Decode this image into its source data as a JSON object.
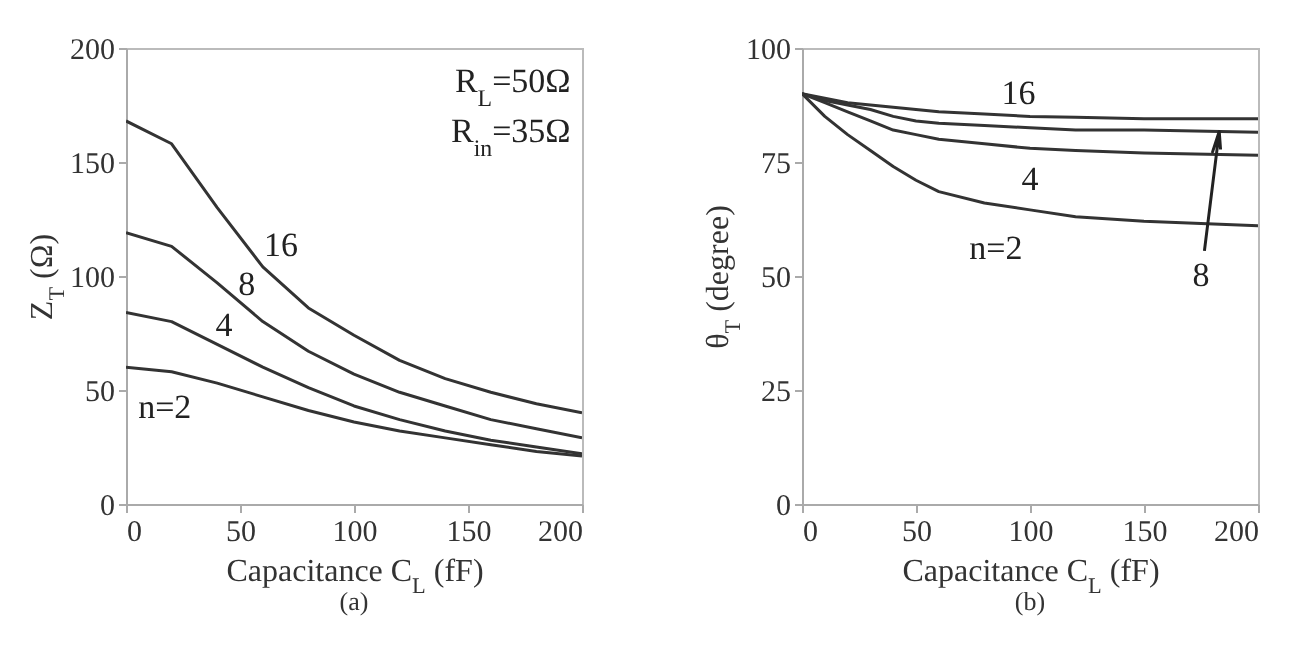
{
  "chart_data": [
    {
      "type": "line",
      "xlabel": "Capacitance C$_{L}$ (fF)",
      "ylabel": "Z$_{T}$ (Ω)",
      "annotations": [
        "R$_{L}$=50Ω",
        "R$_{in}$=35Ω",
        "(a)"
      ],
      "xlim": [
        0,
        200
      ],
      "xticks": [
        0,
        50,
        100,
        150,
        200
      ],
      "ylim": [
        0,
        200
      ],
      "yticks": [
        0,
        50,
        100,
        150,
        200
      ],
      "grid": false,
      "legend": false,
      "x": [
        0,
        20,
        40,
        60,
        80,
        100,
        120,
        140,
        160,
        180,
        200
      ],
      "series": [
        {
          "name": "16",
          "color": "#333333",
          "values": [
            168,
            158,
            130,
            104,
            86,
            74,
            63,
            55,
            49,
            44,
            40
          ]
        },
        {
          "name": "8",
          "color": "#333333",
          "values": [
            119,
            113,
            97,
            80,
            67,
            57,
            49,
            43,
            37,
            33,
            29
          ]
        },
        {
          "name": "4",
          "color": "#333333",
          "values": [
            84,
            80,
            70,
            60,
            51,
            43,
            37,
            32,
            28,
            25,
            22
          ]
        },
        {
          "name": "n=2",
          "color": "#333333",
          "values": [
            60,
            58,
            53,
            47,
            41,
            36,
            32,
            29,
            26,
            23,
            21
          ]
        }
      ]
    },
    {
      "type": "line",
      "xlabel": "Capacitance C$_{L}$ (fF)",
      "ylabel": "θ$_{T}$ (degree)",
      "annotations": [
        "(b)"
      ],
      "xlim": [
        0,
        200
      ],
      "xticks": [
        0,
        50,
        100,
        150,
        200
      ],
      "ylim": [
        0,
        100
      ],
      "yticks": [
        0,
        25,
        50,
        75,
        100
      ],
      "grid": false,
      "legend": false,
      "x": [
        0,
        10,
        20,
        30,
        40,
        50,
        60,
        80,
        100,
        120,
        150,
        200
      ],
      "series": [
        {
          "name": "16",
          "color": "#333333",
          "values": [
            90,
            89,
            88,
            87.5,
            87,
            86.5,
            86,
            85.5,
            85,
            84.8,
            84.5,
            84.5
          ]
        },
        {
          "name": "8",
          "color": "#333333",
          "values": [
            90,
            88.5,
            87.5,
            86.5,
            85,
            84,
            83.5,
            83,
            82.5,
            82,
            82,
            81.5
          ]
        },
        {
          "name": "4",
          "color": "#333333",
          "values": [
            90,
            88,
            86,
            84,
            82,
            81,
            80,
            79,
            78,
            77.5,
            77,
            76.5
          ]
        },
        {
          "name": "n=2",
          "color": "#333333",
          "values": [
            90,
            85,
            81,
            77.5,
            74,
            71,
            68.5,
            66,
            64.5,
            63,
            62,
            61
          ]
        }
      ]
    }
  ]
}
